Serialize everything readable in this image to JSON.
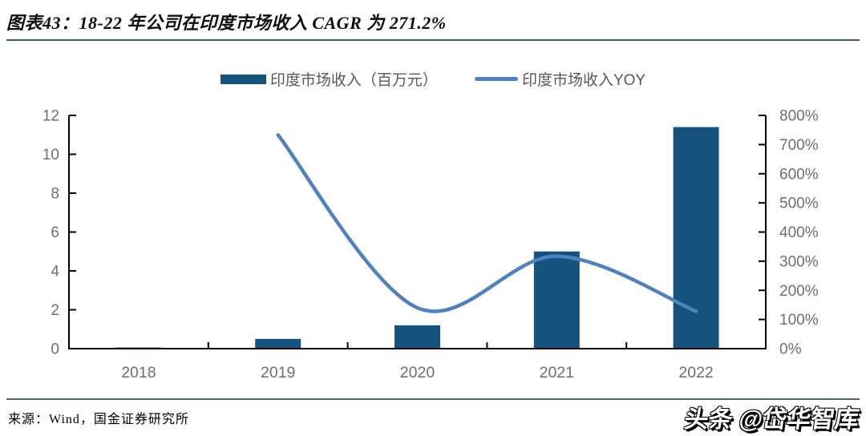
{
  "header": {
    "title": "图表43：18-22 年公司在印度市场收入 CAGR 为 271.2%"
  },
  "legend": {
    "bar_label": "印度市场收入（百万元）",
    "line_label": "印度市场收入YOY"
  },
  "chart_data": {
    "type": "combo-bar-line",
    "categories": [
      "2018",
      "2019",
      "2020",
      "2021",
      "2022"
    ],
    "series": [
      {
        "name": "印度市场收入（百万元）",
        "type": "bar",
        "axis": "left",
        "values": [
          0.06,
          0.5,
          1.2,
          5.0,
          11.4
        ]
      },
      {
        "name": "印度市场收入YOY",
        "type": "line",
        "axis": "right",
        "values_pct": [
          null,
          733,
          140,
          317,
          128
        ]
      }
    ],
    "left_axis": {
      "min": 0,
      "max": 12,
      "tick_labels": [
        "0",
        "2",
        "4",
        "6",
        "8",
        "10",
        "12"
      ]
    },
    "right_axis": {
      "min": 0,
      "max": 800,
      "tick_labels": [
        "0%",
        "100%",
        "200%",
        "300%",
        "400%",
        "500%",
        "600%",
        "700%",
        "800%"
      ]
    },
    "grid": false,
    "legend_position": "top",
    "title": "图表43：18-22 年公司在印度市场收入 CAGR 为 271.2%"
  },
  "colors": {
    "bar": "#15527C",
    "line": "#4E81BD",
    "divider": "#33626F",
    "axis_line": "#000000",
    "axis_text": "#6F6F6F"
  },
  "footer": {
    "source": "来源：Wind，国金证券研究所",
    "watermark": "头条 @岱华智库"
  }
}
